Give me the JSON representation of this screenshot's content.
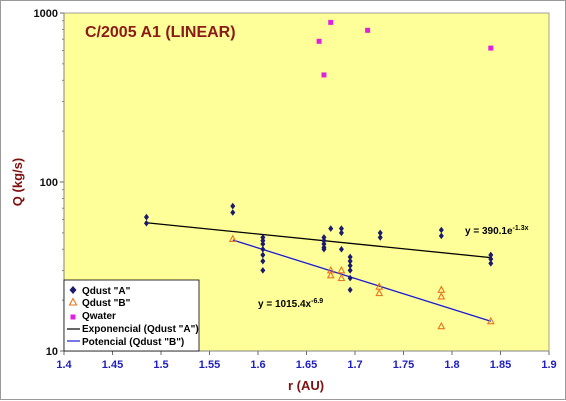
{
  "chart_data": {
    "type": "scatter",
    "title": "C/2005 A1 (LINEAR)",
    "xlabel": "r (AU)",
    "ylabel": "Q (kg/s)",
    "xlim": [
      1.4,
      1.9
    ],
    "ylim": [
      10,
      1000
    ],
    "y_scale": "log",
    "x_ticks": [
      "1.4",
      "1.45",
      "1.5",
      "1.55",
      "1.6",
      "1.65",
      "1.7",
      "1.75",
      "1.8",
      "1.85",
      "1.9"
    ],
    "y_ticks": [
      "10",
      "100",
      "1000"
    ],
    "grid": "none",
    "legend_position": "bottom-left",
    "background": "#ffff99",
    "series": [
      {
        "name": "Qdust \"A\"",
        "marker": "diamond",
        "color": "#1a1a6e",
        "x": [
          1.485,
          1.485,
          1.574,
          1.574,
          1.605,
          1.605,
          1.605,
          1.605,
          1.605,
          1.605,
          1.605,
          1.668,
          1.668,
          1.668,
          1.668,
          1.668,
          1.675,
          1.686,
          1.686,
          1.686,
          1.695,
          1.695,
          1.695,
          1.695,
          1.695,
          1.695,
          1.726,
          1.726,
          1.789,
          1.789,
          1.84,
          1.84,
          1.84
        ],
        "y": [
          62,
          57,
          72,
          66,
          47,
          45,
          43,
          40,
          37,
          34,
          30,
          47,
          45,
          43,
          41,
          40,
          53,
          53,
          50,
          40,
          36,
          34,
          32,
          30,
          27,
          23,
          50,
          47,
          52,
          48,
          37,
          35,
          33
        ]
      },
      {
        "name": "Qdust \"B\"",
        "marker": "triangle",
        "color": "#e8761c",
        "x": [
          1.574,
          1.675,
          1.675,
          1.686,
          1.686,
          1.725,
          1.725,
          1.789,
          1.789,
          1.789,
          1.84
        ],
        "y": [
          46,
          30,
          28,
          30,
          27,
          24,
          22,
          23,
          21,
          14,
          15
        ]
      },
      {
        "name": "Qwater",
        "marker": "square",
        "color": "#e020e0",
        "x": [
          1.663,
          1.668,
          1.675,
          1.713,
          1.84
        ],
        "y": [
          680,
          430,
          880,
          790,
          620
        ]
      }
    ],
    "fits": [
      {
        "name": "Exponencial (Qdust \"A\")",
        "color": "#000000",
        "x_range": [
          1.485,
          1.84
        ],
        "y_range": [
          57.4,
          35.7
        ],
        "equation_base": "y = 390.1e",
        "equation_exp": "-1.3x"
      },
      {
        "name": "Potencial (Qdust \"B\")",
        "color": "#1a1ad6",
        "x_range": [
          1.574,
          1.84
        ],
        "y_range": [
          45.4,
          15.0
        ],
        "equation_base": "y = 1015.4x",
        "equation_exp": "-6.9"
      }
    ]
  }
}
